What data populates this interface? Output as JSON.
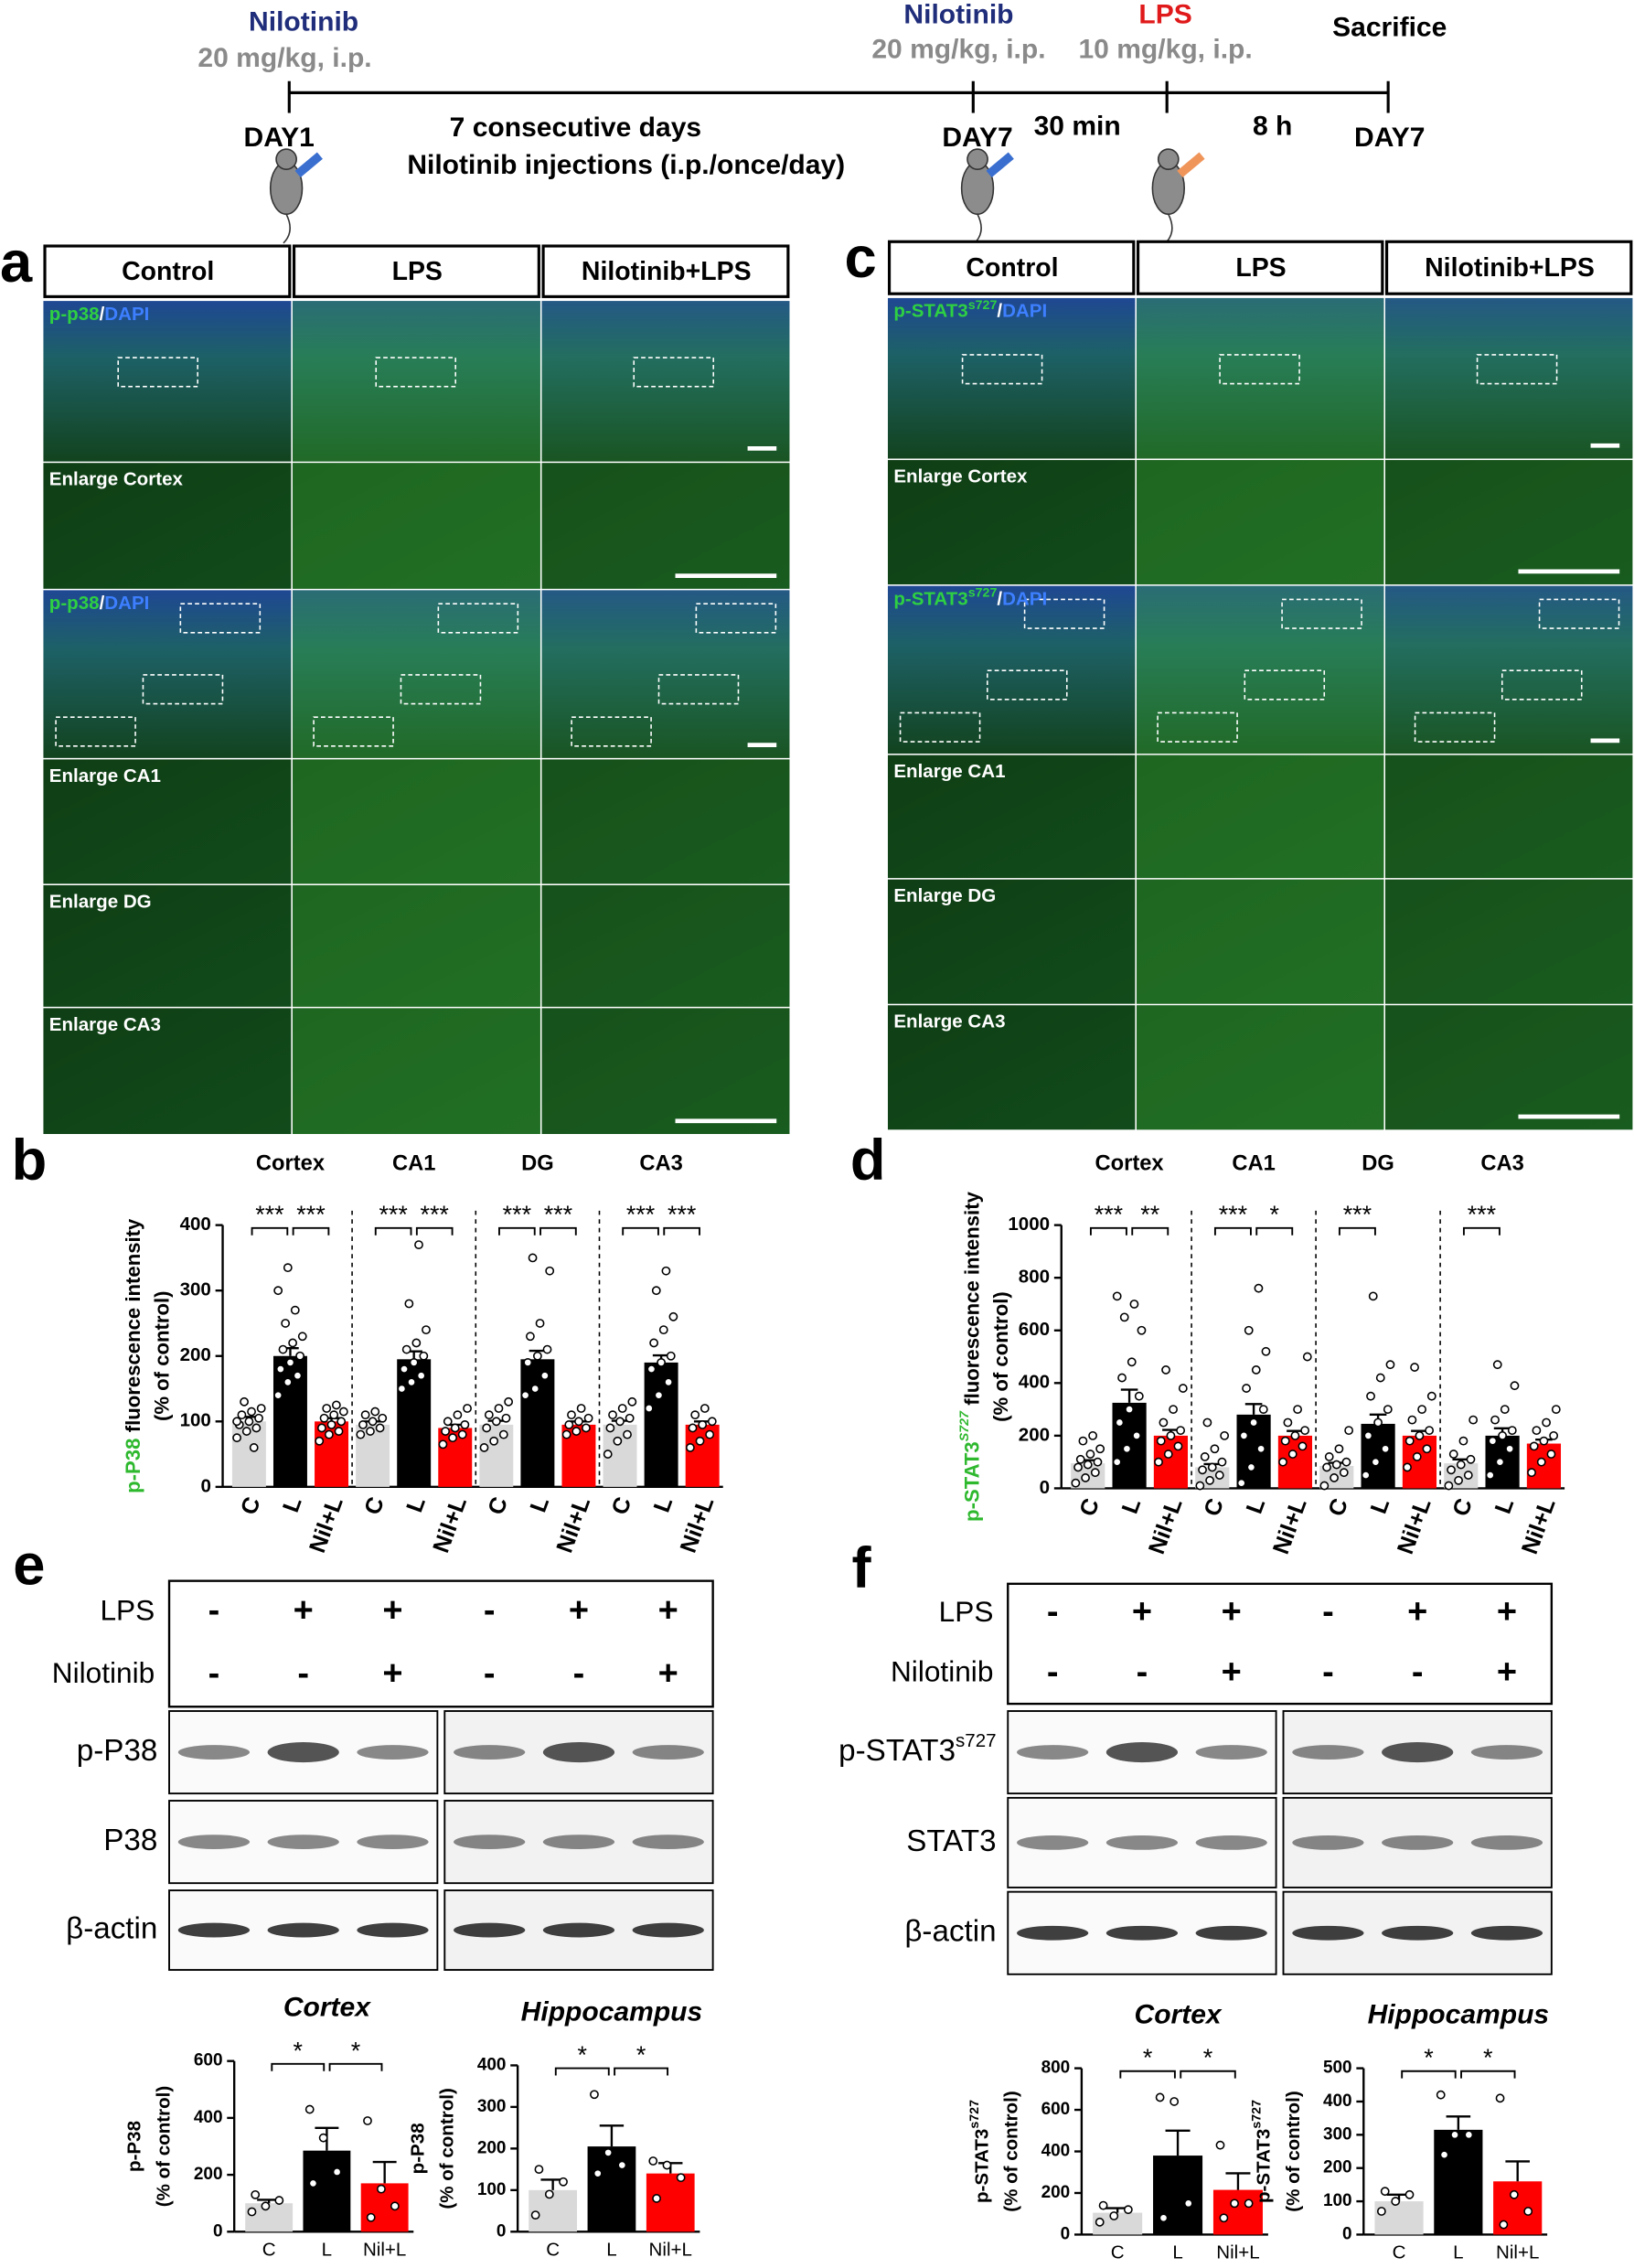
{
  "timeline": {
    "start_drug": "Nilotinib",
    "start_dose": "20 mg/kg, i.p.",
    "start_day": "DAY1",
    "period": "7 consecutive days",
    "period_note": "Nilotinib injections (i.p./once/day)",
    "mid_drug": "Nilotinib",
    "mid_dose": "20 mg/kg, i.p.",
    "mid_day": "DAY7",
    "lps": "LPS",
    "lps_dose": "10 mg/kg, i.p.",
    "gap1": "30 min",
    "gap2": "8 h",
    "end": "Sacrifice",
    "end_day": "DAY7"
  },
  "panel_a": {
    "letter": "a",
    "columns": [
      "Control",
      "LPS",
      "Nilotinib+LPS"
    ],
    "rows": [
      {
        "marker": "p-p38",
        "sep": "/",
        "counterstain": "DAPI"
      },
      {
        "label": "Enlarge Cortex"
      },
      {
        "marker": "p-p38",
        "sep": "/",
        "counterstain": "DAPI"
      },
      {
        "label": "Enlarge CA1"
      },
      {
        "label": "Enlarge DG"
      },
      {
        "label": "Enlarge CA3"
      }
    ]
  },
  "panel_c": {
    "letter": "c",
    "columns": [
      "Control",
      "LPS",
      "Nilotinib+LPS"
    ],
    "rows": [
      {
        "marker": "p-STAT3",
        "sup": "s727",
        "sep": "/",
        "counterstain": "DAPI"
      },
      {
        "label": "Enlarge Cortex"
      },
      {
        "marker": "p-STAT3",
        "sup": "s727",
        "sep": "/",
        "counterstain": "DAPI"
      },
      {
        "label": "Enlarge CA1"
      },
      {
        "label": "Enlarge DG"
      },
      {
        "label": "Enlarge CA3"
      }
    ]
  },
  "panel_e": {
    "letter": "e",
    "treatments": [
      {
        "name": "LPS",
        "signs": [
          "-",
          "+",
          "+",
          "-",
          "+",
          "+"
        ]
      },
      {
        "name": "Nilotinib",
        "signs": [
          "-",
          "-",
          "+",
          "-",
          "-",
          "+"
        ]
      }
    ],
    "blots": [
      {
        "name": "p-P38"
      },
      {
        "name": "P38"
      },
      {
        "name": "β-actin"
      }
    ]
  },
  "panel_f": {
    "letter": "f",
    "treatments": [
      {
        "name": "LPS",
        "signs": [
          "-",
          "+",
          "+",
          "-",
          "+",
          "+"
        ]
      },
      {
        "name": "Nilotinib",
        "signs": [
          "-",
          "-",
          "+",
          "-",
          "-",
          "+"
        ]
      }
    ],
    "blots": [
      {
        "name": "p-STAT3",
        "sup": "s727"
      },
      {
        "name": "STAT3"
      },
      {
        "name": "β-actin"
      }
    ]
  },
  "chart_data": [
    {
      "type": "bar",
      "panel": "b",
      "ylabel_marker": "p-P38",
      "ylabel": "fluorescence intensity",
      "ylabel_unit": "(% of control)",
      "categories": [
        "C",
        "L",
        "Nil+L"
      ],
      "colors": [
        "#d9d9d9",
        "#000000",
        "#ff0000"
      ],
      "ylim": [
        0,
        400
      ],
      "yticks": [
        0,
        100,
        200,
        300,
        400
      ],
      "groups": [
        {
          "name": "Cortex",
          "values": [
            100,
            200,
            100
          ],
          "errors": [
            7,
            12,
            5
          ],
          "points": [
            [
              75,
              85,
              90,
              95,
              100,
              105,
              110,
              115,
              120,
              130,
              60,
              100
            ],
            [
              140,
              160,
              170,
              180,
              190,
              200,
              210,
              220,
              230,
              250,
              270,
              300,
              335
            ],
            [
              70,
              80,
              85,
              90,
              95,
              100,
              105,
              110,
              115,
              120,
              125
            ]
          ],
          "significance": [
            "***",
            "***"
          ]
        },
        {
          "name": "CA1",
          "values": [
            95,
            195,
            90
          ],
          "errors": [
            5,
            12,
            5
          ],
          "points": [
            [
              80,
              85,
              90,
              95,
              100,
              105,
              110,
              115
            ],
            [
              150,
              160,
              170,
              180,
              190,
              200,
              210,
              220,
              240,
              280,
              370
            ],
            [
              65,
              75,
              80,
              85,
              90,
              95,
              100,
              110,
              120
            ]
          ],
          "significance": [
            "***",
            "***"
          ]
        },
        {
          "name": "DG",
          "values": [
            95,
            195,
            95
          ],
          "errors": [
            6,
            13,
            5
          ],
          "points": [
            [
              60,
              70,
              80,
              90,
              100,
              105,
              110,
              120,
              130
            ],
            [
              140,
              150,
              170,
              190,
              200,
              210,
              230,
              250,
              330,
              350
            ],
            [
              80,
              85,
              90,
              95,
              100,
              105,
              110,
              120
            ]
          ],
          "significance": [
            "***",
            "***"
          ]
        },
        {
          "name": "CA3",
          "values": [
            95,
            190,
            95
          ],
          "errors": [
            6,
            11,
            5
          ],
          "points": [
            [
              50,
              70,
              80,
              90,
              100,
              105,
              110,
              120,
              130
            ],
            [
              120,
              140,
              160,
              180,
              190,
              200,
              220,
              240,
              260,
              300,
              330
            ],
            [
              60,
              70,
              80,
              90,
              95,
              100,
              110,
              120
            ]
          ],
          "significance": [
            "***",
            "***"
          ]
        }
      ]
    },
    {
      "type": "bar",
      "panel": "d",
      "ylabel_marker": "p-STAT3",
      "ylabel_sup": "S727",
      "ylabel": "fluorescence intensity",
      "ylabel_unit": "(% of control)",
      "categories": [
        "C",
        "L",
        "Nil+L"
      ],
      "colors": [
        "#d9d9d9",
        "#000000",
        "#ff0000"
      ],
      "ylim": [
        0,
        1000
      ],
      "yticks": [
        0,
        200,
        400,
        600,
        800,
        1000
      ],
      "groups": [
        {
          "name": "Cortex",
          "values": [
            95,
            325,
            200
          ],
          "errors": [
            12,
            50,
            22
          ],
          "points": [
            [
              20,
              40,
              60,
              80,
              90,
              100,
              110,
              130,
              150,
              180,
              200
            ],
            [
              100,
              150,
              200,
              250,
              300,
              350,
              420,
              480,
              600,
              650,
              700,
              730
            ],
            [
              100,
              130,
              160,
              180,
              200,
              220,
              250,
              300,
              380,
              450
            ]
          ],
          "significance": [
            "***",
            "**"
          ]
        },
        {
          "name": "CA1",
          "values": [
            80,
            280,
            200
          ],
          "errors": [
            12,
            40,
            18
          ],
          "points": [
            [
              10,
              30,
              50,
              70,
              80,
              100,
              120,
              150,
              200,
              250
            ],
            [
              20,
              80,
              150,
              200,
              250,
              300,
              380,
              450,
              520,
              600,
              760
            ],
            [
              100,
              130,
              160,
              180,
              200,
              220,
              250,
              300,
              500
            ]
          ],
          "significance": [
            "***",
            "*"
          ]
        },
        {
          "name": "DG",
          "values": [
            85,
            245,
            200
          ],
          "errors": [
            12,
            35,
            18
          ],
          "points": [
            [
              10,
              40,
              60,
              80,
              90,
              100,
              120,
              150,
              220
            ],
            [
              50,
              100,
              150,
              200,
              250,
              300,
              350,
              420,
              470,
              730
            ],
            [
              80,
              120,
              150,
              180,
              200,
              220,
              260,
              300,
              350,
              460
            ]
          ],
          "significance": [
            "***",
            null
          ]
        },
        {
          "name": "CA3",
          "values": [
            95,
            200,
            170
          ],
          "errors": [
            15,
            28,
            15
          ],
          "points": [
            [
              10,
              30,
              50,
              70,
              90,
              110,
              130,
              180,
              260
            ],
            [
              50,
              100,
              150,
              180,
              200,
              220,
              260,
              300,
              390,
              470
            ],
            [
              60,
              100,
              130,
              160,
              180,
              200,
              220,
              250,
              300
            ]
          ],
          "significance": [
            "***",
            null
          ]
        }
      ]
    },
    {
      "type": "bar",
      "title": "Cortex",
      "ylabel": "p-P38",
      "ylabel_unit": "(% of control)",
      "categories": [
        "C",
        "L",
        "Nil+L"
      ],
      "colors": [
        "#d9d9d9",
        "#000000",
        "#ff0000"
      ],
      "ylim": [
        0,
        600
      ],
      "yticks": [
        0,
        200,
        400,
        600
      ],
      "groups": [
        {
          "values": [
            100,
            285,
            170
          ],
          "errors": [
            12,
            80,
            75
          ],
          "points": [
            [
              70,
              90,
              110,
              130
            ],
            [
              430,
              330,
              210,
              170
            ],
            [
              390,
              150,
              90,
              50
            ]
          ],
          "significance": [
            "*",
            "*"
          ]
        }
      ]
    },
    {
      "type": "bar",
      "title": "Hippocampus",
      "ylabel": "p-P38",
      "ylabel_unit": "(% of control)",
      "categories": [
        "C",
        "L",
        "Nil+L"
      ],
      "colors": [
        "#d9d9d9",
        "#000000",
        "#ff0000"
      ],
      "ylim": [
        0,
        400
      ],
      "yticks": [
        0,
        100,
        200,
        300,
        400
      ],
      "groups": [
        {
          "values": [
            100,
            205,
            140
          ],
          "errors": [
            25,
            50,
            25
          ],
          "points": [
            [
              40,
              90,
              120,
              150
            ],
            [
              330,
              190,
              160,
              140
            ],
            [
              170,
              160,
              130,
              80
            ]
          ],
          "significance": [
            "*",
            "*"
          ]
        }
      ]
    },
    {
      "type": "bar",
      "title": "Cortex",
      "ylabel": "p-STAT3",
      "ylabel_sup": "s727",
      "ylabel_unit": "(% of control)",
      "categories": [
        "C",
        "L",
        "Nil+L"
      ],
      "colors": [
        "#d9d9d9",
        "#000000",
        "#ff0000"
      ],
      "ylim": [
        0,
        800
      ],
      "yticks": [
        0,
        200,
        400,
        600,
        800
      ],
      "groups": [
        {
          "values": [
            105,
            380,
            215
          ],
          "errors": [
            22,
            120,
            80
          ],
          "points": [
            [
              60,
              90,
              120,
              140
            ],
            [
              660,
              640,
              150,
              80
            ],
            [
              430,
              150,
              150,
              80
            ]
          ],
          "significance": [
            "*",
            "*"
          ]
        }
      ]
    },
    {
      "type": "bar",
      "title": "Hippocampus",
      "ylabel": "p-STAT3",
      "ylabel_sup": "s727",
      "ylabel_unit": "(% of control)",
      "categories": [
        "C",
        "L",
        "Nil+L"
      ],
      "colors": [
        "#d9d9d9",
        "#000000",
        "#ff0000"
      ],
      "ylim": [
        0,
        500
      ],
      "yticks": [
        0,
        100,
        200,
        300,
        400,
        500
      ],
      "groups": [
        {
          "values": [
            100,
            315,
            160
          ],
          "errors": [
            20,
            40,
            60
          ],
          "points": [
            [
              70,
              100,
              120,
              130
            ],
            [
              420,
              300,
              300,
              240
            ],
            [
              410,
              120,
              70,
              30
            ]
          ],
          "significance": [
            "*",
            "*"
          ]
        }
      ]
    }
  ]
}
